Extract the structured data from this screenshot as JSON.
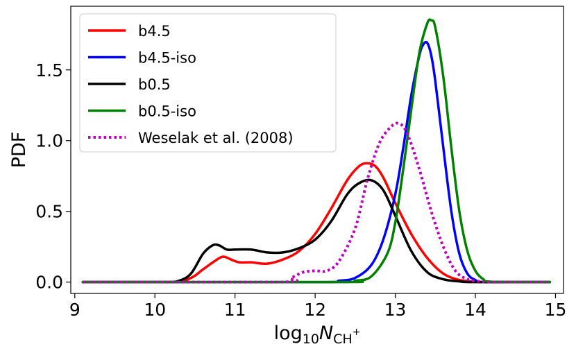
{
  "chart_data": {
    "type": "line",
    "title": "",
    "xlabel": "log10 N_CH+",
    "xlabel_parts": {
      "base": "log",
      "sub": "10",
      "var": "N",
      "varsub": "CH",
      "sup": "+"
    },
    "ylabel": "PDF",
    "xlim": [
      8.95,
      15.1
    ],
    "ylim": [
      -0.08,
      1.95
    ],
    "xticks": [
      9,
      10,
      11,
      12,
      13,
      14,
      15
    ],
    "yticks": [
      0.0,
      0.5,
      1.0,
      1.5
    ],
    "xtick_labels": [
      "9",
      "10",
      "11",
      "12",
      "13",
      "14",
      "15"
    ],
    "ytick_labels": [
      "0.0",
      "0.5",
      "1.0",
      "1.5"
    ],
    "legend_position": "top-left",
    "series": [
      {
        "name": "b4.5",
        "color": "#ff0000",
        "style": "solid",
        "x": [
          9.1,
          10.2,
          10.45,
          10.6,
          10.75,
          10.85,
          10.95,
          11.05,
          11.2,
          11.4,
          11.6,
          11.8,
          12.0,
          12.2,
          12.4,
          12.55,
          12.65,
          12.75,
          12.85,
          13.0,
          13.2,
          13.4,
          13.6,
          13.8,
          14.0,
          14.2,
          14.93
        ],
        "values": [
          0.0,
          0.0,
          0.03,
          0.09,
          0.15,
          0.18,
          0.16,
          0.14,
          0.14,
          0.13,
          0.16,
          0.22,
          0.34,
          0.52,
          0.72,
          0.82,
          0.84,
          0.82,
          0.74,
          0.56,
          0.34,
          0.17,
          0.06,
          0.015,
          0.003,
          0.0,
          0.0
        ]
      },
      {
        "name": "b4.5-iso",
        "color": "#0000ff",
        "style": "solid",
        "x": [
          9.1,
          12.0,
          12.3,
          12.5,
          12.7,
          12.85,
          13.0,
          13.1,
          13.2,
          13.3,
          13.35,
          13.4,
          13.45,
          13.5,
          13.6,
          13.7,
          13.8,
          13.9,
          14.0,
          14.1,
          14.93
        ],
        "values": [
          0.0,
          0.0,
          0.01,
          0.03,
          0.12,
          0.3,
          0.62,
          0.95,
          1.32,
          1.6,
          1.68,
          1.69,
          1.6,
          1.42,
          0.95,
          0.5,
          0.2,
          0.06,
          0.015,
          0.0,
          0.0
        ]
      },
      {
        "name": "b0.5",
        "color": "#000000",
        "style": "solid",
        "x": [
          9.1,
          10.1,
          10.3,
          10.45,
          10.6,
          10.72,
          10.8,
          10.9,
          11.0,
          11.2,
          11.4,
          11.6,
          11.8,
          12.0,
          12.2,
          12.4,
          12.55,
          12.7,
          12.85,
          13.0,
          13.2,
          13.4,
          13.6,
          13.8,
          14.0,
          14.93
        ],
        "values": [
          0.0,
          0.0,
          0.01,
          0.06,
          0.2,
          0.26,
          0.26,
          0.23,
          0.23,
          0.23,
          0.21,
          0.21,
          0.24,
          0.3,
          0.43,
          0.62,
          0.7,
          0.72,
          0.65,
          0.47,
          0.22,
          0.07,
          0.02,
          0.005,
          0.0,
          0.0
        ]
      },
      {
        "name": "b0.5-iso",
        "color": "#008000",
        "style": "solid",
        "x": [
          9.1,
          12.3,
          12.5,
          12.7,
          12.9,
          13.0,
          13.1,
          13.2,
          13.3,
          13.4,
          13.45,
          13.5,
          13.6,
          13.7,
          13.8,
          13.9,
          14.0,
          14.1,
          14.2,
          14.93
        ],
        "values": [
          0.0,
          0.0,
          0.01,
          0.04,
          0.2,
          0.42,
          0.8,
          1.22,
          1.62,
          1.83,
          1.85,
          1.8,
          1.45,
          0.95,
          0.5,
          0.22,
          0.08,
          0.02,
          0.003,
          0.0
        ]
      },
      {
        "name": "Weselak et al. (2008)",
        "color": "#bf00bf",
        "style": "dotted",
        "x": [
          9.1,
          11.55,
          11.7,
          11.85,
          12.0,
          12.15,
          12.3,
          12.5,
          12.65,
          12.8,
          12.95,
          13.05,
          13.15,
          13.3,
          13.45,
          13.6,
          13.75,
          13.9,
          14.05,
          14.2,
          14.93
        ],
        "values": [
          0.0,
          0.0,
          0.03,
          0.07,
          0.08,
          0.08,
          0.15,
          0.38,
          0.72,
          0.98,
          1.1,
          1.12,
          1.05,
          0.8,
          0.5,
          0.25,
          0.08,
          0.02,
          0.005,
          0.0,
          0.0
        ]
      }
    ]
  }
}
